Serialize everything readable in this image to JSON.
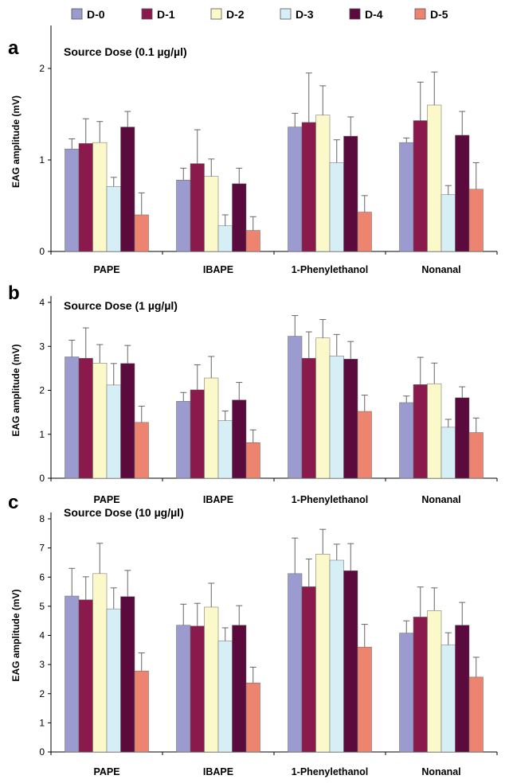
{
  "legend": [
    {
      "name": "D-0",
      "color": "#9b9bcf"
    },
    {
      "name": "D-1",
      "color": "#8b1a4c"
    },
    {
      "name": "D-2",
      "color": "#fbf9c9"
    },
    {
      "name": "D-3",
      "color": "#d6eff7"
    },
    {
      "name": "D-4",
      "color": "#5b0a3e"
    },
    {
      "name": "D-5",
      "color": "#ec8470"
    }
  ],
  "chart_data": [
    {
      "type": "bar",
      "panel": "a",
      "title": "Source Dose (0.1 µg/µl)",
      "ylabel": "EAG amplitude (mV)",
      "ylim": [
        0,
        2.4
      ],
      "yticks": [
        0,
        1,
        2
      ],
      "categories": [
        "PAPE",
        "IBAPE",
        "1-Phenylethanol",
        "Nonanal"
      ],
      "series": [
        {
          "name": "D-0",
          "values": [
            1.12,
            0.78,
            1.36,
            1.19
          ],
          "errors": [
            0.11,
            0.13,
            0.15,
            0.05
          ]
        },
        {
          "name": "D-1",
          "values": [
            1.18,
            0.96,
            1.41,
            1.43
          ],
          "errors": [
            0.27,
            0.37,
            0.54,
            0.42
          ]
        },
        {
          "name": "D-2",
          "values": [
            1.19,
            0.82,
            1.49,
            1.6
          ],
          "errors": [
            0.23,
            0.19,
            0.32,
            0.36
          ]
        },
        {
          "name": "D-3",
          "values": [
            0.71,
            0.28,
            0.97,
            0.62
          ],
          "errors": [
            0.1,
            0.12,
            0.25,
            0.1
          ]
        },
        {
          "name": "D-4",
          "values": [
            1.36,
            0.74,
            1.26,
            1.27
          ],
          "errors": [
            0.17,
            0.17,
            0.21,
            0.26
          ]
        },
        {
          "name": "D-5",
          "values": [
            0.4,
            0.23,
            0.43,
            0.68
          ],
          "errors": [
            0.24,
            0.15,
            0.18,
            0.29
          ]
        }
      ]
    },
    {
      "type": "bar",
      "panel": "b",
      "title": "Source Dose (1 µg/µl)",
      "ylabel": "EAG amplitude (mV)",
      "ylim": [
        0,
        4
      ],
      "yticks": [
        0,
        1,
        2,
        3,
        4
      ],
      "categories": [
        "PAPE",
        "IBAPE",
        "1-Phenylethanol",
        "Nonanal"
      ],
      "series": [
        {
          "name": "D-0",
          "values": [
            2.76,
            1.75,
            3.23,
            1.72
          ],
          "errors": [
            0.38,
            0.2,
            0.47,
            0.15
          ]
        },
        {
          "name": "D-1",
          "values": [
            2.73,
            2.01,
            2.73,
            2.13
          ],
          "errors": [
            0.69,
            0.57,
            0.6,
            0.62
          ]
        },
        {
          "name": "D-2",
          "values": [
            2.62,
            2.28,
            3.19,
            2.15
          ],
          "errors": [
            0.42,
            0.49,
            0.42,
            0.47
          ]
        },
        {
          "name": "D-3",
          "values": [
            2.12,
            1.31,
            2.78,
            1.16
          ],
          "errors": [
            0.49,
            0.22,
            0.49,
            0.18
          ]
        },
        {
          "name": "D-4",
          "values": [
            2.61,
            1.78,
            2.71,
            1.83
          ],
          "errors": [
            0.41,
            0.4,
            0.4,
            0.25
          ]
        },
        {
          "name": "D-5",
          "values": [
            1.27,
            0.81,
            1.52,
            1.04
          ],
          "errors": [
            0.37,
            0.29,
            0.37,
            0.33
          ]
        }
      ]
    },
    {
      "type": "bar",
      "panel": "c",
      "title": "Source Dose (10 µg/µl)",
      "ylabel": "EAG amplitude (mV)",
      "ylim": [
        0,
        8
      ],
      "yticks": [
        0,
        1,
        2,
        3,
        4,
        5,
        6,
        7,
        8
      ],
      "categories": [
        "PAPE",
        "IBAPE",
        "1-Phenylethanol",
        "Nonanal"
      ],
      "series": [
        {
          "name": "D-0",
          "values": [
            5.35,
            4.35,
            6.12,
            4.08
          ],
          "errors": [
            0.95,
            0.72,
            1.22,
            0.42
          ]
        },
        {
          "name": "D-1",
          "values": [
            5.22,
            4.32,
            5.67,
            4.63
          ],
          "errors": [
            0.79,
            0.78,
            0.95,
            1.03
          ]
        },
        {
          "name": "D-2",
          "values": [
            6.12,
            4.97,
            6.79,
            4.85
          ],
          "errors": [
            1.04,
            0.82,
            0.85,
            0.78
          ]
        },
        {
          "name": "D-3",
          "values": [
            4.91,
            3.81,
            6.58,
            3.67
          ],
          "errors": [
            0.72,
            0.45,
            0.55,
            0.42
          ]
        },
        {
          "name": "D-4",
          "values": [
            5.33,
            4.35,
            6.22,
            4.35
          ],
          "errors": [
            0.9,
            0.67,
            0.93,
            0.78
          ]
        },
        {
          "name": "D-5",
          "values": [
            2.78,
            2.37,
            3.6,
            2.57
          ],
          "errors": [
            0.62,
            0.54,
            0.78,
            0.68
          ]
        }
      ]
    }
  ]
}
